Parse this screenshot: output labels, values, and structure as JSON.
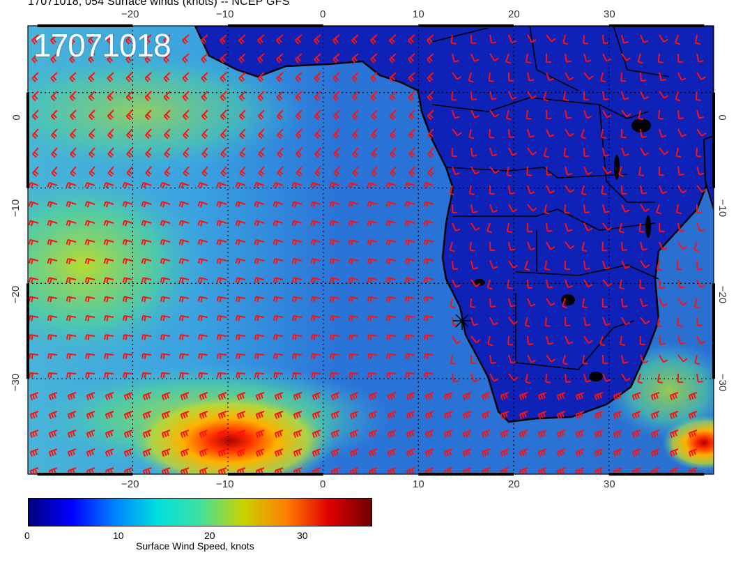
{
  "header": {
    "title": "17071018, 054 Surface winds (knots) -- NCEP GFS"
  },
  "map": {
    "date_stamp": "17071018",
    "top_lon_labels": [
      "−20",
      "−10",
      "0",
      "10",
      "20",
      "30"
    ],
    "bottom_lon_labels": [
      "−20",
      "−10",
      "0",
      "10",
      "20",
      "30"
    ],
    "left_lat_labels": [
      "0",
      "−10",
      "−20",
      "−30"
    ],
    "right_lat_labels": [
      "0",
      "−10",
      "−20",
      "−30"
    ],
    "lon_range": [
      -31,
      41
    ],
    "lat_range": [
      -40,
      7
    ],
    "barb_color": "#ff1010",
    "land_color": "#0d1ca8",
    "ocean_color": "#3aa0e0"
  },
  "colorbar": {
    "label": "Surface Wind Speed, knots",
    "ticks": [
      "0",
      "10",
      "20",
      "30"
    ],
    "min": 0,
    "max": 37,
    "stops": [
      "#00007f",
      "#0000ff",
      "#0080ff",
      "#00e0e0",
      "#40e0a0",
      "#c8d400",
      "#ff8000",
      "#e00000",
      "#700000"
    ]
  }
}
